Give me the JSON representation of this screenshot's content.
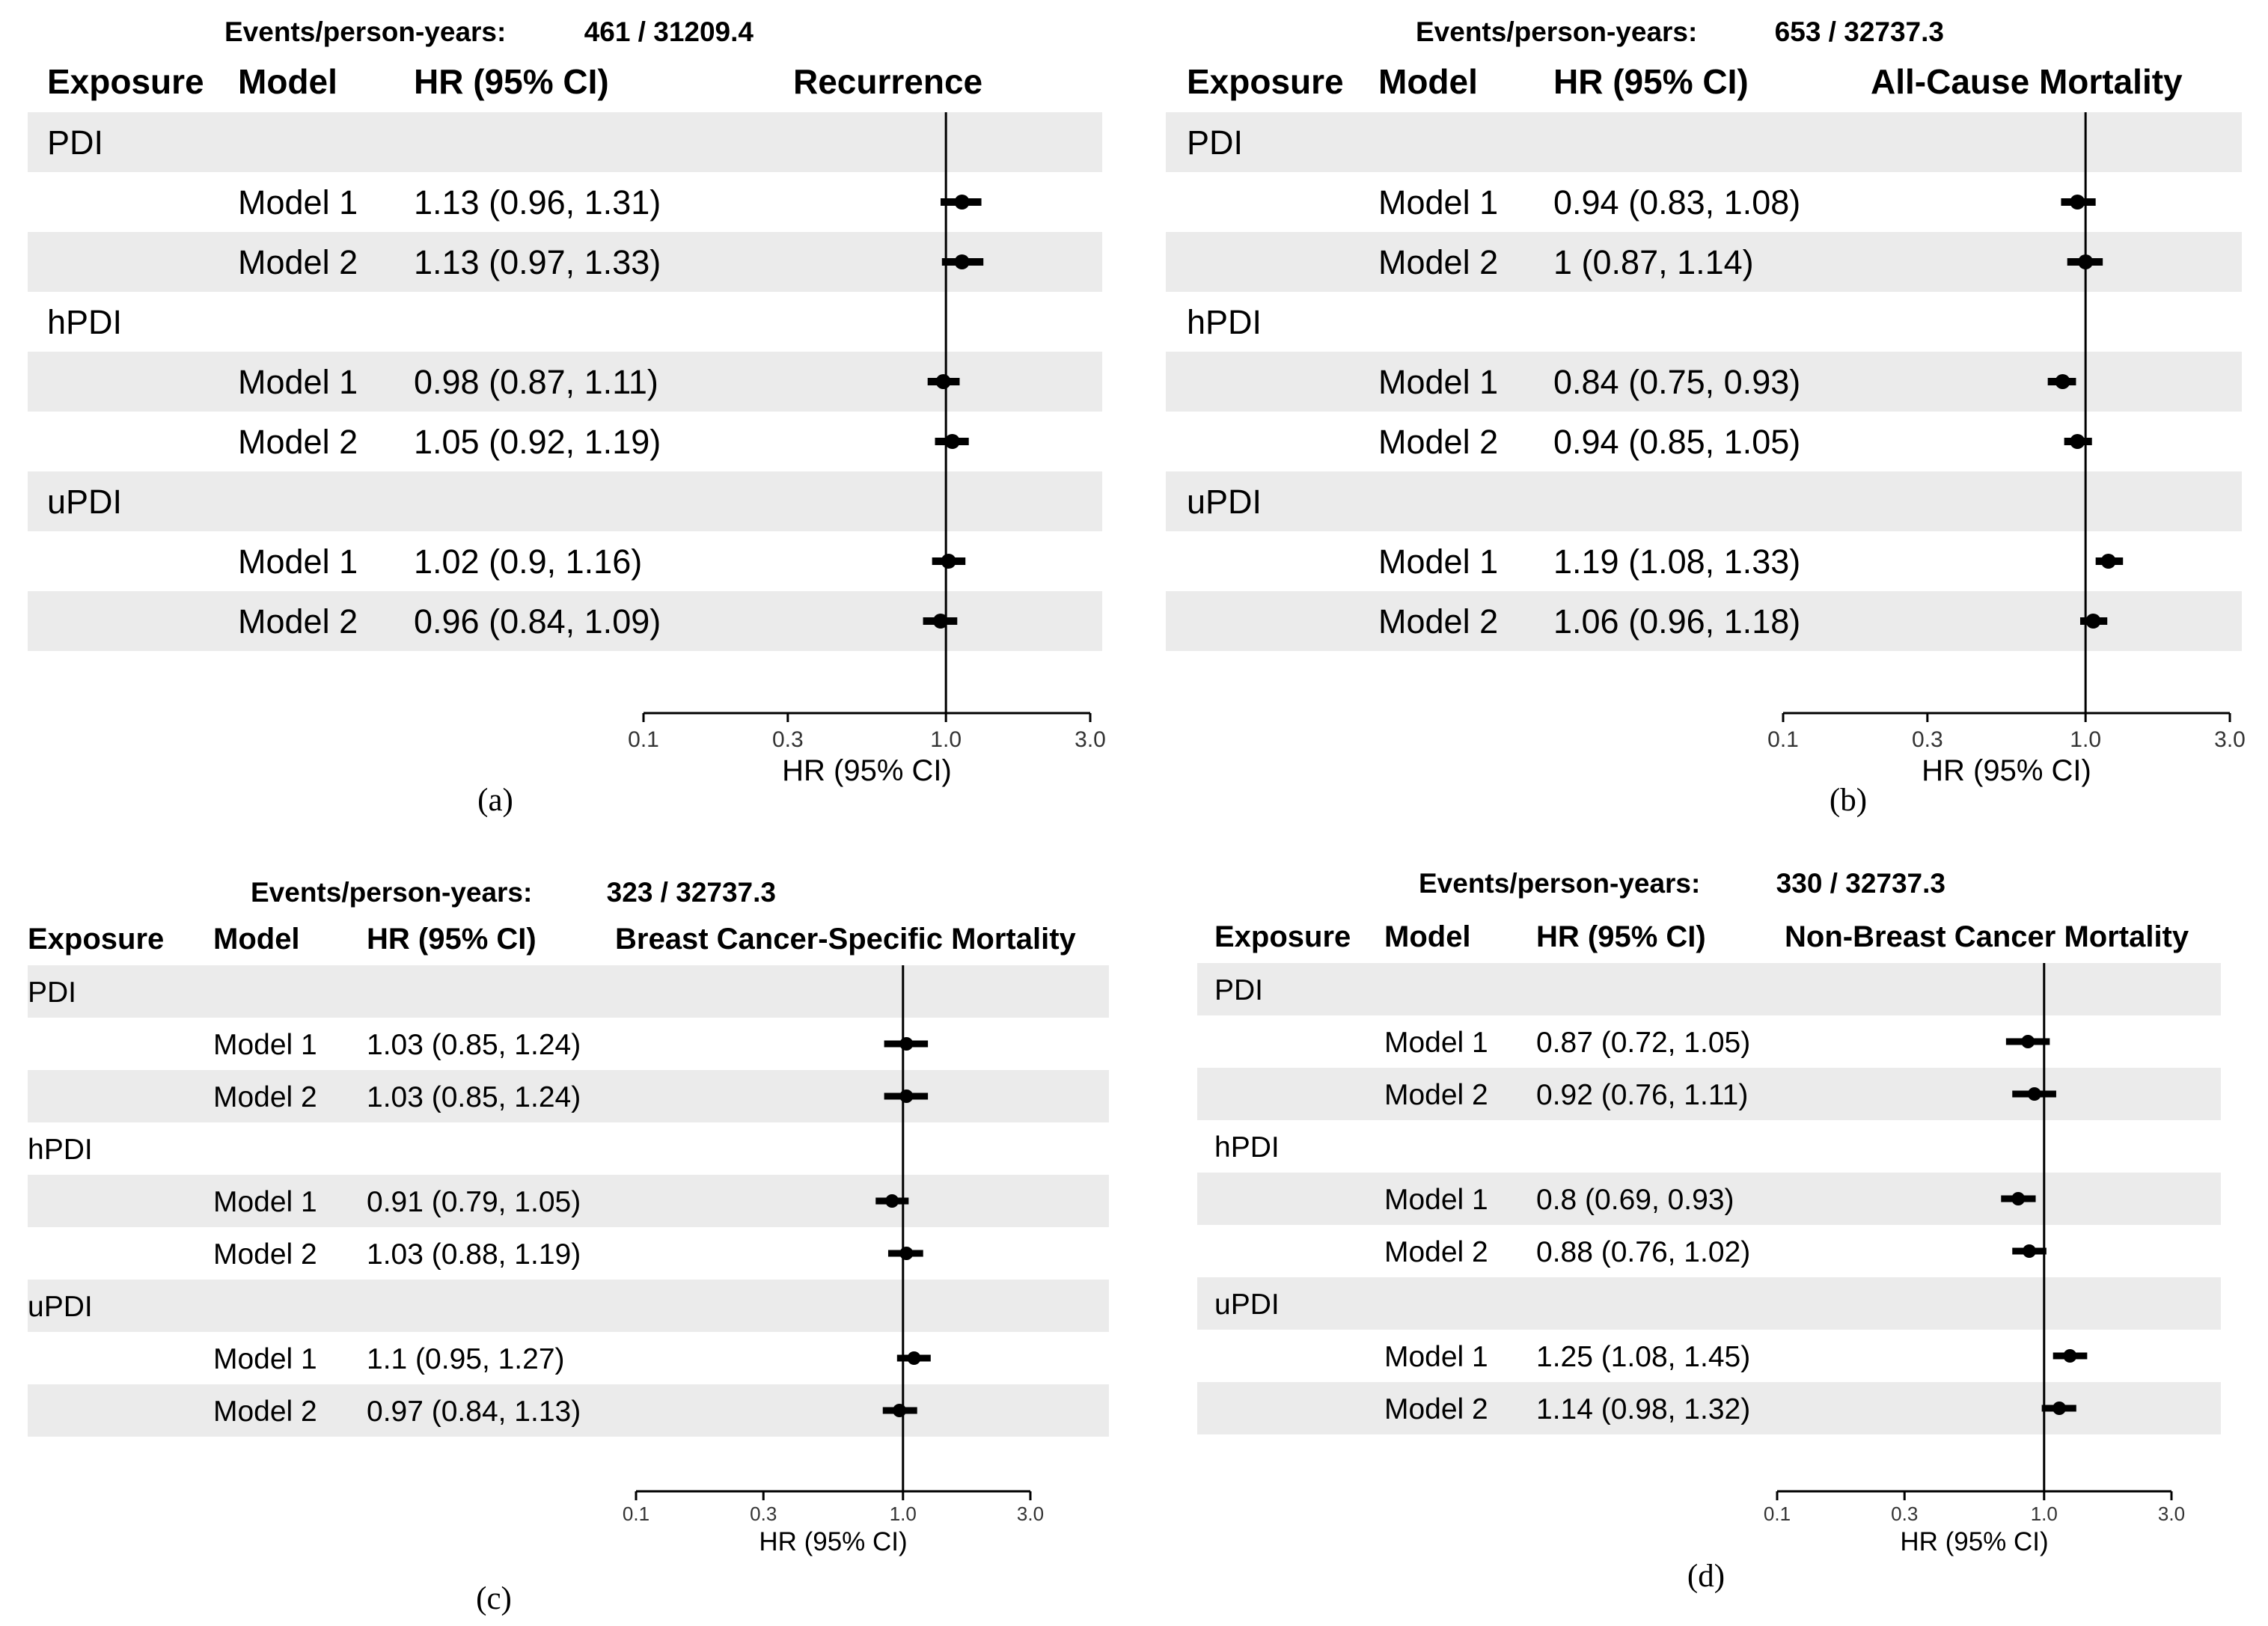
{
  "figure": {
    "axis_label": "HR (95% CI)",
    "col_exposure": "Exposure",
    "col_model": "Model",
    "col_hr": "HR (95% CI)",
    "tick_labels": [
      "0.1",
      "0.3",
      "1.0",
      "3.0"
    ]
  },
  "colors": {
    "stripe": "#ebebeb",
    "ink": "#000000",
    "tick_text": "#333333"
  },
  "chart_data": [
    {
      "type": "forest",
      "caption": "(a)",
      "events_label": "Events/person-years:",
      "events_value": "461 / 31209.4",
      "title": "Recurrence",
      "xlabel": "HR (95% CI)",
      "xscale": "log",
      "xlim": [
        0.1,
        3.0
      ],
      "reference": 1.0,
      "groups": [
        {
          "exposure": "PDI",
          "rows": [
            {
              "model": "Model 1",
              "label": "1.13 (0.96, 1.31)",
              "hr": 1.13,
              "lo": 0.96,
              "hi": 1.31
            },
            {
              "model": "Model 2",
              "label": "1.13 (0.97, 1.33)",
              "hr": 1.13,
              "lo": 0.97,
              "hi": 1.33
            }
          ]
        },
        {
          "exposure": "hPDI",
          "rows": [
            {
              "model": "Model 1",
              "label": "0.98 (0.87, 1.11)",
              "hr": 0.98,
              "lo": 0.87,
              "hi": 1.11
            },
            {
              "model": "Model 2",
              "label": "1.05 (0.92, 1.19)",
              "hr": 1.05,
              "lo": 0.92,
              "hi": 1.19
            }
          ]
        },
        {
          "exposure": "uPDI",
          "rows": [
            {
              "model": "Model 1",
              "label": "1.02 (0.9, 1.16)",
              "hr": 1.02,
              "lo": 0.9,
              "hi": 1.16
            },
            {
              "model": "Model 2",
              "label": "0.96 (0.84, 1.09)",
              "hr": 0.96,
              "lo": 0.84,
              "hi": 1.09
            }
          ]
        }
      ]
    },
    {
      "type": "forest",
      "caption": "(b)",
      "events_label": "Events/person-years:",
      "events_value": "653 / 32737.3",
      "title": "All-Cause Mortality",
      "xlabel": "HR (95% CI)",
      "xscale": "log",
      "xlim": [
        0.1,
        3.0
      ],
      "reference": 1.0,
      "groups": [
        {
          "exposure": "PDI",
          "rows": [
            {
              "model": "Model 1",
              "label": "0.94 (0.83, 1.08)",
              "hr": 0.94,
              "lo": 0.83,
              "hi": 1.08
            },
            {
              "model": "Model 2",
              "label": "1 (0.87, 1.14)",
              "hr": 1.0,
              "lo": 0.87,
              "hi": 1.14
            }
          ]
        },
        {
          "exposure": "hPDI",
          "rows": [
            {
              "model": "Model 1",
              "label": "0.84 (0.75, 0.93)",
              "hr": 0.84,
              "lo": 0.75,
              "hi": 0.93
            },
            {
              "model": "Model 2",
              "label": "0.94 (0.85, 1.05)",
              "hr": 0.94,
              "lo": 0.85,
              "hi": 1.05
            }
          ]
        },
        {
          "exposure": "uPDI",
          "rows": [
            {
              "model": "Model 1",
              "label": "1.19 (1.08, 1.33)",
              "hr": 1.19,
              "lo": 1.08,
              "hi": 1.33
            },
            {
              "model": "Model 2",
              "label": "1.06 (0.96, 1.18)",
              "hr": 1.06,
              "lo": 0.96,
              "hi": 1.18
            }
          ]
        }
      ]
    },
    {
      "type": "forest",
      "caption": "(c)",
      "events_label": "Events/person-years:",
      "events_value": "323 / 32737.3",
      "title": "Breast Cancer-Specific Mortality",
      "xlabel": "HR (95% CI)",
      "xscale": "log",
      "xlim": [
        0.1,
        3.0
      ],
      "reference": 1.0,
      "groups": [
        {
          "exposure": "PDI",
          "rows": [
            {
              "model": "Model 1",
              "label": "1.03 (0.85, 1.24)",
              "hr": 1.03,
              "lo": 0.85,
              "hi": 1.24
            },
            {
              "model": "Model 2",
              "label": "1.03 (0.85, 1.24)",
              "hr": 1.03,
              "lo": 0.85,
              "hi": 1.24
            }
          ]
        },
        {
          "exposure": "hPDI",
          "rows": [
            {
              "model": "Model 1",
              "label": "0.91 (0.79, 1.05)",
              "hr": 0.91,
              "lo": 0.79,
              "hi": 1.05
            },
            {
              "model": "Model 2",
              "label": "1.03 (0.88, 1.19)",
              "hr": 1.03,
              "lo": 0.88,
              "hi": 1.19
            }
          ]
        },
        {
          "exposure": "uPDI",
          "rows": [
            {
              "model": "Model 1",
              "label": "1.1 (0.95, 1.27)",
              "hr": 1.1,
              "lo": 0.95,
              "hi": 1.27
            },
            {
              "model": "Model 2",
              "label": "0.97 (0.84, 1.13)",
              "hr": 0.97,
              "lo": 0.84,
              "hi": 1.13
            }
          ]
        }
      ]
    },
    {
      "type": "forest",
      "caption": "(d)",
      "events_label": "Events/person-years:",
      "events_value": "330 / 32737.3",
      "title": "Non-Breast Cancer Mortality",
      "xlabel": "HR (95% CI)",
      "xscale": "log",
      "xlim": [
        0.1,
        3.0
      ],
      "reference": 1.0,
      "groups": [
        {
          "exposure": "PDI",
          "rows": [
            {
              "model": "Model 1",
              "label": "0.87 (0.72, 1.05)",
              "hr": 0.87,
              "lo": 0.72,
              "hi": 1.05
            },
            {
              "model": "Model 2",
              "label": "0.92 (0.76, 1.11)",
              "hr": 0.92,
              "lo": 0.76,
              "hi": 1.11
            }
          ]
        },
        {
          "exposure": "hPDI",
          "rows": [
            {
              "model": "Model 1",
              "label": "0.8 (0.69, 0.93)",
              "hr": 0.8,
              "lo": 0.69,
              "hi": 0.93
            },
            {
              "model": "Model 2",
              "label": "0.88 (0.76, 1.02)",
              "hr": 0.88,
              "lo": 0.76,
              "hi": 1.02
            }
          ]
        },
        {
          "exposure": "uPDI",
          "rows": [
            {
              "model": "Model 1",
              "label": "1.25 (1.08, 1.45)",
              "hr": 1.25,
              "lo": 1.08,
              "hi": 1.45
            },
            {
              "model": "Model 2",
              "label": "1.14 (0.98, 1.32)",
              "hr": 1.14,
              "lo": 0.98,
              "hi": 1.32
            }
          ]
        }
      ]
    }
  ]
}
